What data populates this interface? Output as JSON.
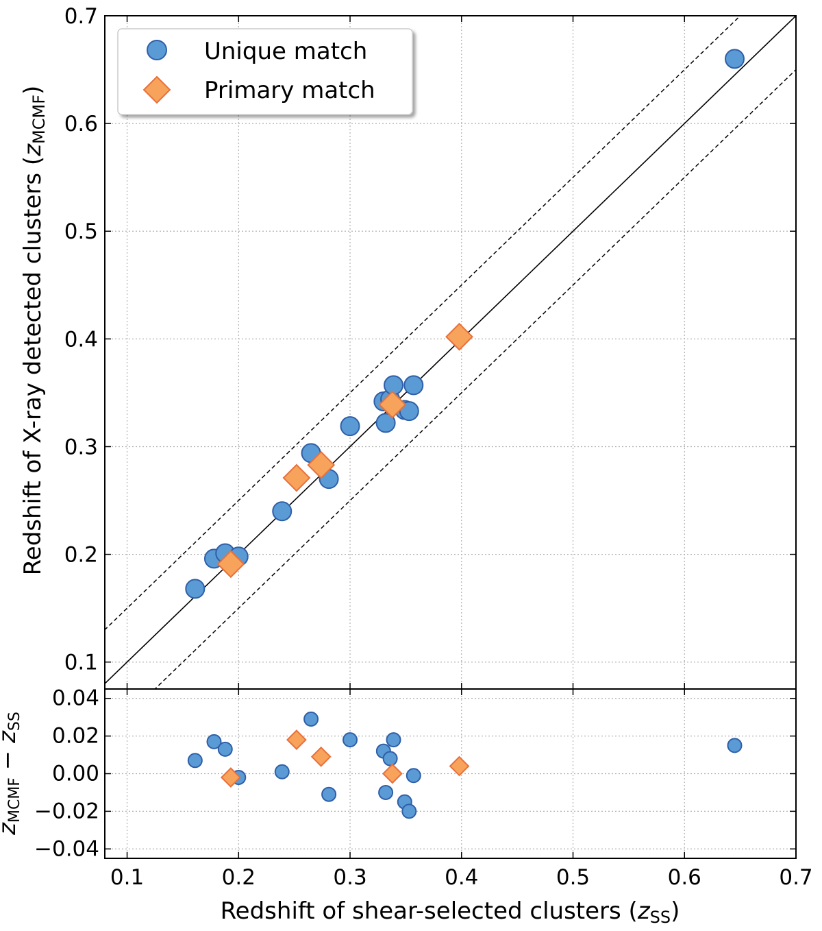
{
  "chart_data": {
    "type": "scatter",
    "colors": {
      "unique_fill": "#5b9bd5",
      "unique_edge": "#2e5fa8",
      "primary_fill": "#f7a35c",
      "primary_edge": "#e8703a",
      "grid": "#b0b0b0",
      "line": "#000000"
    },
    "main": {
      "xlim": [
        0.08,
        0.7
      ],
      "ylim": [
        0.075,
        0.7
      ],
      "xticks": [
        "0.1",
        "0.2",
        "0.3",
        "0.4",
        "0.5",
        "0.6",
        "0.7"
      ],
      "yticks": [
        "0.1",
        "0.2",
        "0.3",
        "0.4",
        "0.5",
        "0.6",
        "0.7"
      ],
      "ylabel_main": "Redshift of X-ray detected clusters (",
      "ylabel_var": "z",
      "ylabel_sub": "MCMF",
      "ylabel_close": ")",
      "lines": [
        {
          "name": "one-to-one",
          "offset": 0.0,
          "style": "solid"
        },
        {
          "name": "upper-bound",
          "offset": 0.05,
          "style": "dashed"
        },
        {
          "name": "lower-bound",
          "offset": -0.05,
          "style": "dashed"
        }
      ]
    },
    "residual": {
      "ylim": [
        -0.045,
        0.045
      ],
      "yticks": [
        "0.04",
        "0.02",
        "0.00",
        "−0.02",
        "−0.04"
      ],
      "ylabel_var1": "z",
      "ylabel_sub1": "MCMF",
      "ylabel_op": " − ",
      "ylabel_var2": "z",
      "ylabel_sub2": "SS"
    },
    "xlabel_main": "Redshift of shear-selected clusters (",
    "xlabel_var": "z",
    "xlabel_sub": "SS",
    "xlabel_close": ")",
    "legend": {
      "position": "upper-left",
      "entries": [
        "Unique match",
        "Primary match"
      ]
    },
    "series": [
      {
        "name": "Unique match",
        "marker": "circle",
        "points": [
          [
            0.161,
            0.168
          ],
          [
            0.178,
            0.196
          ],
          [
            0.188,
            0.201
          ],
          [
            0.2,
            0.198
          ],
          [
            0.239,
            0.24
          ],
          [
            0.265,
            0.294
          ],
          [
            0.281,
            0.27
          ],
          [
            0.3,
            0.319
          ],
          [
            0.33,
            0.342
          ],
          [
            0.332,
            0.322
          ],
          [
            0.336,
            0.344
          ],
          [
            0.339,
            0.357
          ],
          [
            0.349,
            0.334
          ],
          [
            0.353,
            0.333
          ],
          [
            0.357,
            0.357
          ],
          [
            0.645,
            0.66
          ]
        ],
        "residuals": [
          [
            0.161,
            0.007
          ],
          [
            0.178,
            0.017
          ],
          [
            0.188,
            0.013
          ],
          [
            0.2,
            -0.002
          ],
          [
            0.239,
            0.001
          ],
          [
            0.265,
            0.029
          ],
          [
            0.281,
            -0.011
          ],
          [
            0.3,
            0.018
          ],
          [
            0.33,
            0.012
          ],
          [
            0.332,
            -0.01
          ],
          [
            0.336,
            0.008
          ],
          [
            0.339,
            0.018
          ],
          [
            0.349,
            -0.015
          ],
          [
            0.353,
            -0.02
          ],
          [
            0.357,
            -0.001
          ],
          [
            0.645,
            0.015
          ]
        ]
      },
      {
        "name": "Primary match",
        "marker": "diamond",
        "points": [
          [
            0.193,
            0.191
          ],
          [
            0.252,
            0.271
          ],
          [
            0.274,
            0.283
          ],
          [
            0.338,
            0.339
          ],
          [
            0.398,
            0.402
          ]
        ],
        "residuals": [
          [
            0.193,
            -0.002
          ],
          [
            0.252,
            0.018
          ],
          [
            0.274,
            0.009
          ],
          [
            0.338,
            0.0
          ],
          [
            0.398,
            0.004
          ]
        ]
      }
    ]
  }
}
